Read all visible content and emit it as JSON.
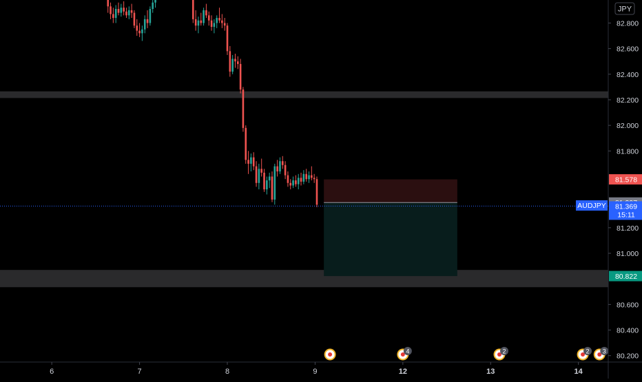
{
  "symbol": "AUDJPY",
  "currency": "JPY",
  "chart_data": {
    "type": "candlestick",
    "title": "",
    "xlabel": "",
    "ylabel": "",
    "ylim": [
      80.15,
      82.98
    ],
    "y_ticks": [
      "82.800",
      "82.600",
      "82.400",
      "82.200",
      "82.000",
      "81.800",
      "81.200",
      "81.000",
      "80.600",
      "80.400",
      "80.200"
    ],
    "x_ticks": [
      "6",
      "7",
      "8",
      "9",
      "12",
      "13",
      "14"
    ],
    "x_tick_positions": [
      6.0,
      7.0,
      8.0,
      9.0,
      10.0,
      11.0,
      12.0
    ],
    "x_range": [
      5.41,
      12.34
    ],
    "candles_sample_note": "",
    "candles": [
      [
        6.64,
        82.98,
        83.0,
        82.88,
        82.93
      ],
      [
        6.67,
        82.93,
        82.96,
        82.83,
        82.87
      ],
      [
        6.7,
        82.87,
        82.92,
        82.8,
        82.84
      ],
      [
        6.73,
        82.84,
        82.94,
        82.8,
        82.91
      ],
      [
        6.76,
        82.91,
        82.96,
        82.86,
        82.88
      ],
      [
        6.79,
        82.88,
        82.95,
        82.85,
        82.92
      ],
      [
        6.82,
        82.92,
        82.97,
        82.86,
        82.89
      ],
      [
        6.85,
        82.89,
        82.92,
        82.84,
        82.86
      ],
      [
        6.88,
        82.86,
        82.93,
        82.83,
        82.9
      ],
      [
        6.91,
        82.9,
        82.95,
        82.84,
        82.88
      ],
      [
        6.94,
        82.88,
        82.9,
        82.76,
        82.78
      ],
      [
        6.97,
        82.78,
        82.83,
        82.7,
        82.74
      ],
      [
        7.0,
        82.74,
        82.8,
        82.69,
        82.72
      ],
      [
        7.03,
        82.72,
        82.78,
        82.66,
        82.75
      ],
      [
        7.06,
        82.75,
        82.86,
        82.72,
        82.83
      ],
      [
        7.09,
        82.83,
        82.9,
        82.76,
        82.8
      ],
      [
        7.12,
        82.8,
        82.93,
        82.78,
        82.91
      ],
      [
        7.15,
        82.91,
        82.99,
        82.88,
        82.96
      ],
      [
        7.18,
        82.96,
        83.0,
        82.92,
        82.98
      ],
      [
        7.61,
        82.98,
        83.0,
        82.8,
        82.83
      ],
      [
        7.64,
        82.83,
        82.9,
        82.74,
        82.78
      ],
      [
        7.67,
        82.78,
        82.85,
        82.72,
        82.82
      ],
      [
        7.7,
        82.82,
        82.88,
        82.78,
        82.8
      ],
      [
        7.73,
        82.8,
        82.92,
        82.78,
        82.9
      ],
      [
        7.76,
        82.9,
        82.95,
        82.84,
        82.86
      ],
      [
        7.79,
        82.86,
        82.89,
        82.78,
        82.82
      ],
      [
        7.82,
        82.82,
        82.86,
        82.74,
        82.77
      ],
      [
        7.85,
        82.77,
        82.83,
        82.72,
        82.8
      ],
      [
        7.88,
        82.8,
        82.86,
        82.76,
        82.84
      ],
      [
        7.91,
        82.84,
        82.92,
        82.8,
        82.82
      ],
      [
        7.94,
        82.82,
        82.87,
        82.76,
        82.8
      ],
      [
        7.97,
        82.8,
        82.84,
        82.74,
        82.78
      ],
      [
        8.0,
        82.78,
        82.8,
        82.55,
        82.58
      ],
      [
        8.03,
        82.58,
        82.62,
        82.38,
        82.42
      ],
      [
        8.06,
        82.42,
        82.55,
        82.4,
        82.52
      ],
      [
        8.09,
        82.52,
        82.56,
        82.45,
        82.5
      ],
      [
        8.12,
        82.5,
        82.54,
        82.44,
        82.48
      ],
      [
        8.15,
        82.48,
        82.52,
        82.25,
        82.28
      ],
      [
        8.18,
        82.28,
        82.3,
        81.95,
        81.98
      ],
      [
        8.21,
        81.98,
        82.0,
        81.7,
        81.73
      ],
      [
        8.24,
        81.73,
        81.8,
        81.62,
        81.7
      ],
      [
        8.27,
        81.7,
        81.78,
        81.64,
        81.75
      ],
      [
        8.3,
        81.75,
        81.79,
        81.65,
        81.68
      ],
      [
        8.33,
        81.68,
        81.72,
        81.52,
        81.55
      ],
      [
        8.36,
        81.55,
        81.7,
        81.5,
        81.66
      ],
      [
        8.39,
        81.66,
        81.74,
        81.6,
        81.63
      ],
      [
        8.42,
        81.63,
        81.66,
        81.48,
        81.5
      ],
      [
        8.45,
        81.5,
        81.6,
        81.46,
        81.57
      ],
      [
        8.48,
        81.57,
        81.63,
        81.51,
        81.6
      ],
      [
        8.51,
        81.6,
        81.64,
        81.4,
        81.42
      ],
      [
        8.54,
        81.42,
        81.7,
        81.38,
        81.68
      ],
      [
        8.57,
        81.68,
        81.73,
        81.6,
        81.64
      ],
      [
        8.6,
        81.64,
        81.75,
        81.62,
        81.72
      ],
      [
        8.63,
        81.72,
        81.76,
        81.66,
        81.69
      ],
      [
        8.66,
        81.69,
        81.72,
        81.58,
        81.61
      ],
      [
        8.69,
        81.61,
        81.64,
        81.52,
        81.55
      ],
      [
        8.72,
        81.55,
        81.58,
        81.5,
        81.53
      ],
      [
        8.75,
        81.53,
        81.6,
        81.51,
        81.57
      ],
      [
        8.78,
        81.57,
        81.61,
        81.52,
        81.54
      ],
      [
        8.81,
        81.54,
        81.62,
        81.5,
        81.59
      ],
      [
        8.84,
        81.59,
        81.63,
        81.53,
        81.56
      ],
      [
        8.87,
        81.56,
        81.65,
        81.54,
        81.62
      ],
      [
        8.9,
        81.62,
        81.66,
        81.56,
        81.58
      ],
      [
        8.93,
        81.58,
        81.64,
        81.55,
        81.61
      ],
      [
        8.96,
        81.61,
        81.68,
        81.57,
        81.59
      ],
      [
        8.99,
        81.59,
        81.62,
        81.55,
        81.58
      ],
      [
        9.02,
        81.58,
        81.6,
        81.36,
        81.38
      ]
    ],
    "colors": {
      "up": "#26a69a",
      "down": "#ef5350",
      "background": "#000000",
      "axis_text": "#d1d4dc",
      "zone": "#2a2a2c",
      "risk": "#2b0f10",
      "reward": "#081d1c",
      "price_line": "#2962ff"
    },
    "horizontal_zones": [
      {
        "low": 82.214,
        "high": 82.266
      },
      {
        "low": 80.735,
        "high": 80.87
      }
    ],
    "position": {
      "side": "short",
      "x_start": 9.1,
      "x_end": 10.62,
      "entry": 81.397,
      "stop": 81.578,
      "target": 80.822
    },
    "price_labels": [
      {
        "value": 81.578,
        "text": "81.578",
        "color": "#ef5350"
      },
      {
        "value": 81.397,
        "text": "81.397",
        "color": "#787b86"
      },
      {
        "value": 80.822,
        "text": "80.822",
        "color": "#089981"
      }
    ],
    "current_price": {
      "value": 81.369,
      "text": "81.369",
      "countdown": "15:11",
      "color": "#2962ff"
    },
    "events": [
      {
        "x": 9.17,
        "badge": ""
      },
      {
        "x": 10.0,
        "badge": "4"
      },
      {
        "x": 11.1,
        "badge": "2"
      },
      {
        "x": 12.05,
        "badge": "2"
      },
      {
        "x": 12.24,
        "badge": "3"
      }
    ]
  }
}
